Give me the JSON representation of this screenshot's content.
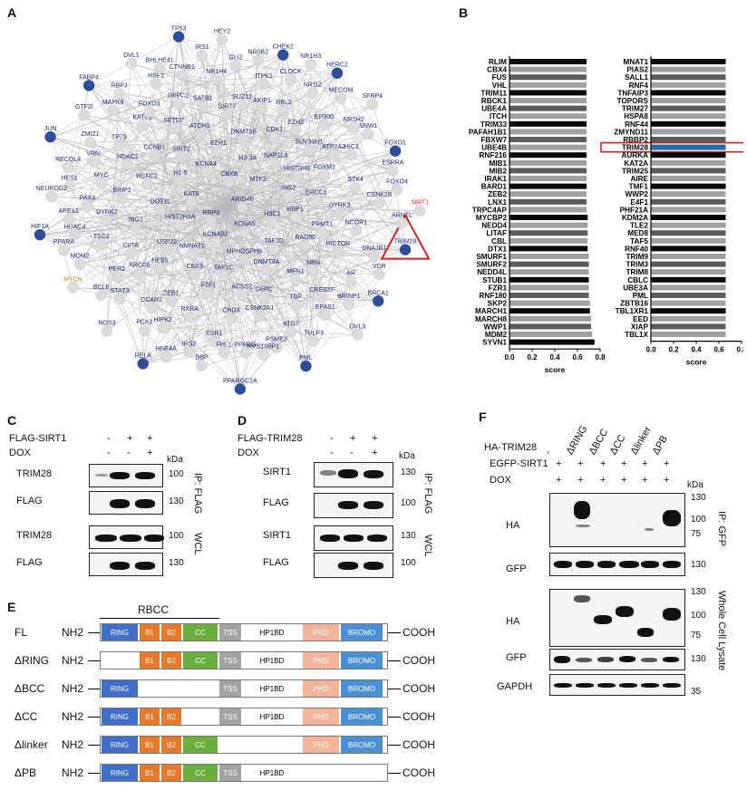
{
  "panels": {
    "A": "A",
    "B": "B",
    "C": "C",
    "D": "D",
    "E": "E",
    "F": "F"
  },
  "network": {
    "center_label": "SIRT1",
    "highlight": [
      "TRIM28",
      "MYCN"
    ],
    "hub_nodes": [
      "TRIM28",
      "CHEK2",
      "PML",
      "JUN",
      "FOXO1",
      "RELA",
      "TP53",
      "BRCA1",
      "HIF1A",
      "HERC2",
      "PPARGC1A",
      "FABP4"
    ],
    "labels": [
      "ARID4B",
      "RRP8",
      "CBX8",
      "KCNA5",
      "KAT8",
      "MTF2",
      "KCNAB2",
      "KCNA4",
      "H3C1",
      "HIST2H3A",
      "H3-3A",
      "MPHOSPH8",
      "H1-5",
      "ING2",
      "NMNAT1",
      "EZH1",
      "TAF1D",
      "DOT1L",
      "NAP1L4",
      "TAF1C",
      "SIRT2",
      "RBP1",
      "USP22",
      "DNMT3B",
      "DNMT3A",
      "HCFC2",
      "HIST3H3",
      "CBX3",
      "ATOH1",
      "RAD50",
      "ING1",
      "CDK1",
      "ACSS2",
      "CCNB1",
      "ERCC1",
      "HES5",
      "SIRT7",
      "MFN1",
      "BRIP1",
      "SUV39H1",
      "F2F1",
      "SETD7",
      "PRMT1",
      "CIITA",
      "AKIP1",
      "G6PC",
      "HDAC1",
      "FOXM1",
      "ZEB1",
      "SATB1",
      "NBN",
      "DYRK2",
      "EZH2",
      "CHD3",
      "KAT2B",
      "DYRK3",
      "XRCC6",
      "SUZ12",
      "TBP",
      "MYC",
      "ATP2A2",
      "RXRA",
      "G6PC2",
      "RICTOR",
      "TSC2",
      "RBL2",
      "CSNK2A1",
      "TP73",
      "STK4",
      "CCAR2",
      "NR1H4",
      "CREBZF",
      "PAX3",
      "EP300",
      "ESR1",
      "FOXO3",
      "NCOR1",
      "PER2",
      "ITPK1",
      "ATG7",
      "VRN",
      "HIC1",
      "HIPK2",
      "CTNNB1",
      "AR",
      "HDAC4",
      "NR1I2",
      "PPARG",
      "MAPK8",
      "CSNK2B",
      "STAT3",
      "GLI2",
      "EPAS1",
      "HES1",
      "NR1H2",
      "IRS2",
      "HSF1",
      "DNAJB1",
      "MDM2",
      "CLOCK",
      "PSME3",
      "ZMIZ1",
      "ESRRA",
      "PCK1",
      "IRS1",
      "BRINP1",
      "APEX1",
      "MECOM",
      "FHL1",
      "RBPJ",
      "ARNTL",
      "BCL6",
      "NR0B2",
      "TULP3",
      "RECQL4",
      "SNW1",
      "HNF4A",
      "BHLHE41",
      "VDR",
      "PPARA",
      "NR1H3",
      "RPS19BP1",
      "GTF2I",
      "FOXO4",
      "NOS3",
      "HEY2",
      "DVL3",
      "NEUROG2",
      "SFRP4",
      "DBP",
      "DVL1",
      "TRIM28",
      "MYCN",
      "CHEK2",
      "PML",
      "JUN",
      "FOXO1",
      "RELA",
      "TP53",
      "BRCA1",
      "HIF1A",
      "HERC2",
      "PPARGC1A",
      "FABP4",
      "SIRT1"
    ]
  },
  "chart_data": [
    {
      "type": "bar",
      "orientation": "horizontal",
      "xlabel": "score",
      "xlim": [
        0,
        0.8
      ],
      "xticks": [
        "0.0",
        "0.2",
        "0.4",
        "0.6",
        "0.8"
      ],
      "categories": [
        "RLIM",
        "CBX4",
        "FUS",
        "VHL",
        "TRIM11",
        "RBCK1",
        "UBE4A",
        "ITCH",
        "TRIM33",
        "PAFAH1B1",
        "FBXW7",
        "UBE4B",
        "RNF216",
        "MIB1",
        "MIB2",
        "IRAK1",
        "BARD1",
        "ZEB2",
        "LNX1",
        "TRPC4AP",
        "MYCBP2",
        "NEDD4",
        "LITAF",
        "CBL",
        "DTX1",
        "SMURF1",
        "SMURF2",
        "NEDD4L",
        "STUB1",
        "FZR1",
        "RNF180",
        "SKP2",
        "MARCH1",
        "MARCH8",
        "WWP1",
        "MDM2",
        "SYVN1"
      ],
      "values": [
        0.68,
        0.68,
        0.68,
        0.68,
        0.68,
        0.68,
        0.68,
        0.68,
        0.68,
        0.68,
        0.68,
        0.68,
        0.68,
        0.68,
        0.68,
        0.68,
        0.68,
        0.68,
        0.68,
        0.68,
        0.69,
        0.69,
        0.69,
        0.69,
        0.69,
        0.7,
        0.7,
        0.7,
        0.7,
        0.7,
        0.7,
        0.71,
        0.71,
        0.72,
        0.72,
        0.73,
        0.75
      ]
    },
    {
      "type": "bar",
      "orientation": "horizontal",
      "xlabel": "score",
      "xlim": [
        0,
        0.8
      ],
      "xticks": [
        "0.0",
        "0.2",
        "0.4",
        "0.6",
        "0.8"
      ],
      "highlight": "TRIM28",
      "highlight_color": "#1a6fa8",
      "categories": [
        "MNAT1",
        "PIAS2",
        "SALL1",
        "RNF4",
        "TNFAIP3",
        "TOPORS",
        "TRIM27",
        "HSPA8",
        "RNF44",
        "ZMYND11",
        "RBBP2",
        "TRIM28",
        "AURKA",
        "KAT2A",
        "TRIM25",
        "AIRE",
        "TMF1",
        "WWP2",
        "E4F1",
        "PHF21A",
        "KDM2A",
        "TLE2",
        "MED8",
        "TAF5",
        "RNF40",
        "TRIM9",
        "TRIM3",
        "TRIM8",
        "CBLC",
        "UBE3A",
        "PML",
        "ZBTB16",
        "TBL1XR1",
        "EED",
        "XIAP",
        "TBL1X"
      ],
      "values": [
        0.66,
        0.66,
        0.66,
        0.66,
        0.66,
        0.66,
        0.66,
        0.66,
        0.66,
        0.66,
        0.66,
        0.66,
        0.66,
        0.66,
        0.66,
        0.66,
        0.66,
        0.66,
        0.66,
        0.66,
        0.66,
        0.66,
        0.66,
        0.66,
        0.66,
        0.66,
        0.66,
        0.66,
        0.66,
        0.66,
        0.66,
        0.66,
        0.66,
        0.66,
        0.66,
        0.66
      ]
    }
  ],
  "panelC": {
    "rows": [
      {
        "label": "FLAG-SIRT1",
        "values": [
          "-",
          "+",
          "+"
        ]
      },
      {
        "label": "DOX",
        "values": [
          "-",
          "-",
          "+"
        ]
      }
    ],
    "kda_label": "kDa",
    "blots": [
      {
        "name": "TRIM28",
        "marker": "100"
      },
      {
        "name": "FLAG",
        "marker": "130"
      },
      {
        "name": "TRIM28",
        "marker": "100"
      },
      {
        "name": "FLAG",
        "marker": "130"
      }
    ],
    "ip_label": "IP: FLAG",
    "wcl_label": "WCL"
  },
  "panelD": {
    "rows": [
      {
        "label": "FLAG-TRIM28",
        "values": [
          "-",
          "+",
          "+"
        ]
      },
      {
        "label": "DOX",
        "values": [
          "-",
          "-",
          "+"
        ]
      }
    ],
    "kda_label": "kDa",
    "blots": [
      {
        "name": "SIRT1",
        "marker": "130"
      },
      {
        "name": "FLAG",
        "marker": "100"
      },
      {
        "name": "SIRT1",
        "marker": "130"
      },
      {
        "name": "FLAG",
        "marker": "100"
      }
    ],
    "ip_label": "IP: FLAG",
    "wcl_label": "WCL"
  },
  "panelE": {
    "rbcc_label": "RBCC",
    "nh2": "NH2",
    "cooh": "COOH",
    "constructs": [
      {
        "name": "FL",
        "domains": [
          "RING",
          "B1",
          "B2",
          "CC",
          "TSS",
          "HP1BD",
          "PHD",
          "BROMO"
        ]
      },
      {
        "name": "ΔRING",
        "domains": [
          "B1",
          "B2",
          "CC",
          "TSS",
          "HP1BD",
          "PHD",
          "BROMO"
        ]
      },
      {
        "name": "ΔBCC",
        "domains": [
          "RING",
          "TSS",
          "HP1BD",
          "PHD",
          "BROMO"
        ]
      },
      {
        "name": "ΔCC",
        "domains": [
          "RING",
          "B1",
          "B2",
          "TSS",
          "HP1BD",
          "PHD",
          "BROMO"
        ]
      },
      {
        "name": "Δlinker",
        "domains": [
          "RING",
          "B1",
          "B2",
          "CC",
          "PHD",
          "BROMO"
        ]
      },
      {
        "name": "ΔPB",
        "domains": [
          "RING",
          "B1",
          "B2",
          "CC",
          "TSS",
          "HP1BD"
        ]
      }
    ],
    "colors": {
      "RING": "#3f6fc6",
      "B1": "#e8782a",
      "B2": "#e8782a",
      "CC": "#6aae3e",
      "TSS": "#a3a3a3",
      "HP1BD": "#ffffff",
      "PHD": "#f2b59a",
      "BROMO": "#4a90d6"
    }
  },
  "panelF": {
    "lane_headers": [
      "-",
      "ΔRING",
      "ΔBCC",
      "ΔCC",
      "Δlinker",
      "ΔPB"
    ],
    "rows": [
      {
        "label": "HA-TRIM28",
        "values": []
      },
      {
        "label": "EGFP-SIRT1",
        "values": [
          "+",
          "+",
          "+",
          "+",
          "+",
          "+"
        ]
      },
      {
        "label": "DOX",
        "values": [
          "+",
          "+",
          "+",
          "+",
          "+",
          "+"
        ]
      }
    ],
    "kda_label": "kDa",
    "ip_blots": [
      {
        "name": "HA",
        "markers": [
          "130",
          "100",
          "75"
        ]
      },
      {
        "name": "GFP",
        "markers": [
          "130"
        ]
      }
    ],
    "wcl_blots": [
      {
        "name": "HA",
        "markers": [
          "130",
          "100",
          "75"
        ]
      },
      {
        "name": "GFP",
        "markers": [
          "130"
        ]
      },
      {
        "name": "GAPDH",
        "markers": [
          "35"
        ]
      }
    ],
    "ip_label": "IP: GFP",
    "wcl_label": "Whole Cell Lysate"
  }
}
